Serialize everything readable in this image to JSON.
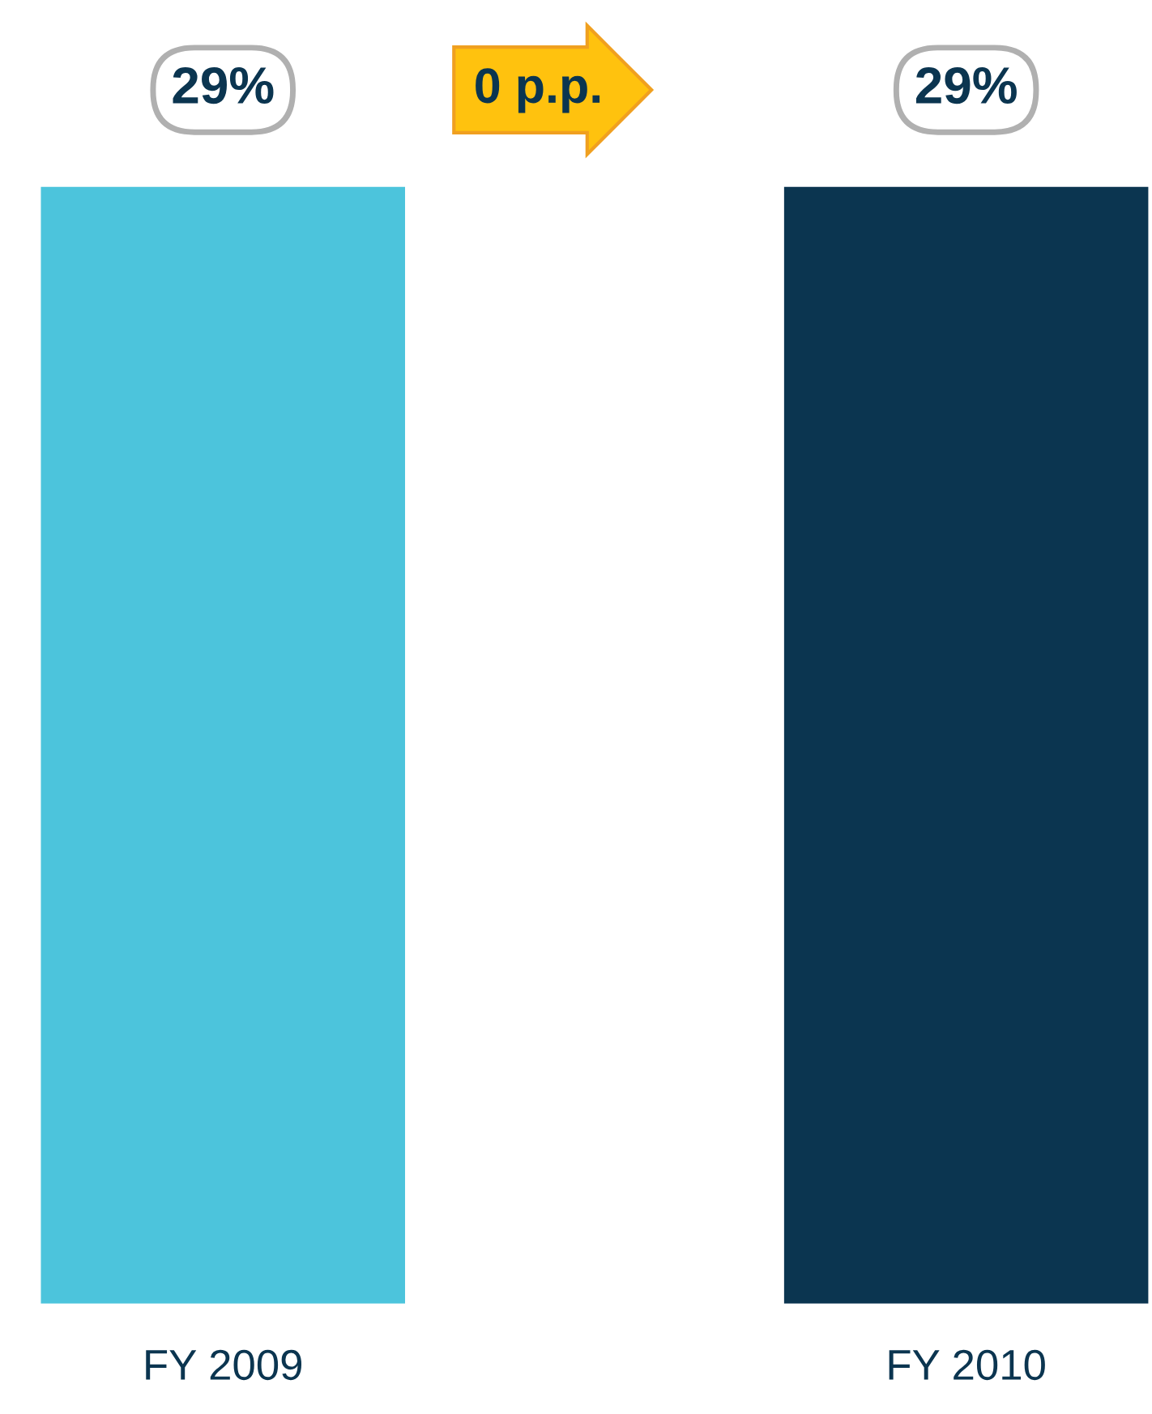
{
  "chart_data": {
    "type": "bar",
    "categories": [
      "FY 2009",
      "FY 2010"
    ],
    "values": [
      29,
      29
    ],
    "colors": [
      "#4cc4dc",
      "#0b3550"
    ],
    "value_labels": [
      "29%",
      "29%"
    ],
    "annotations": [
      "0 p.p."
    ]
  }
}
